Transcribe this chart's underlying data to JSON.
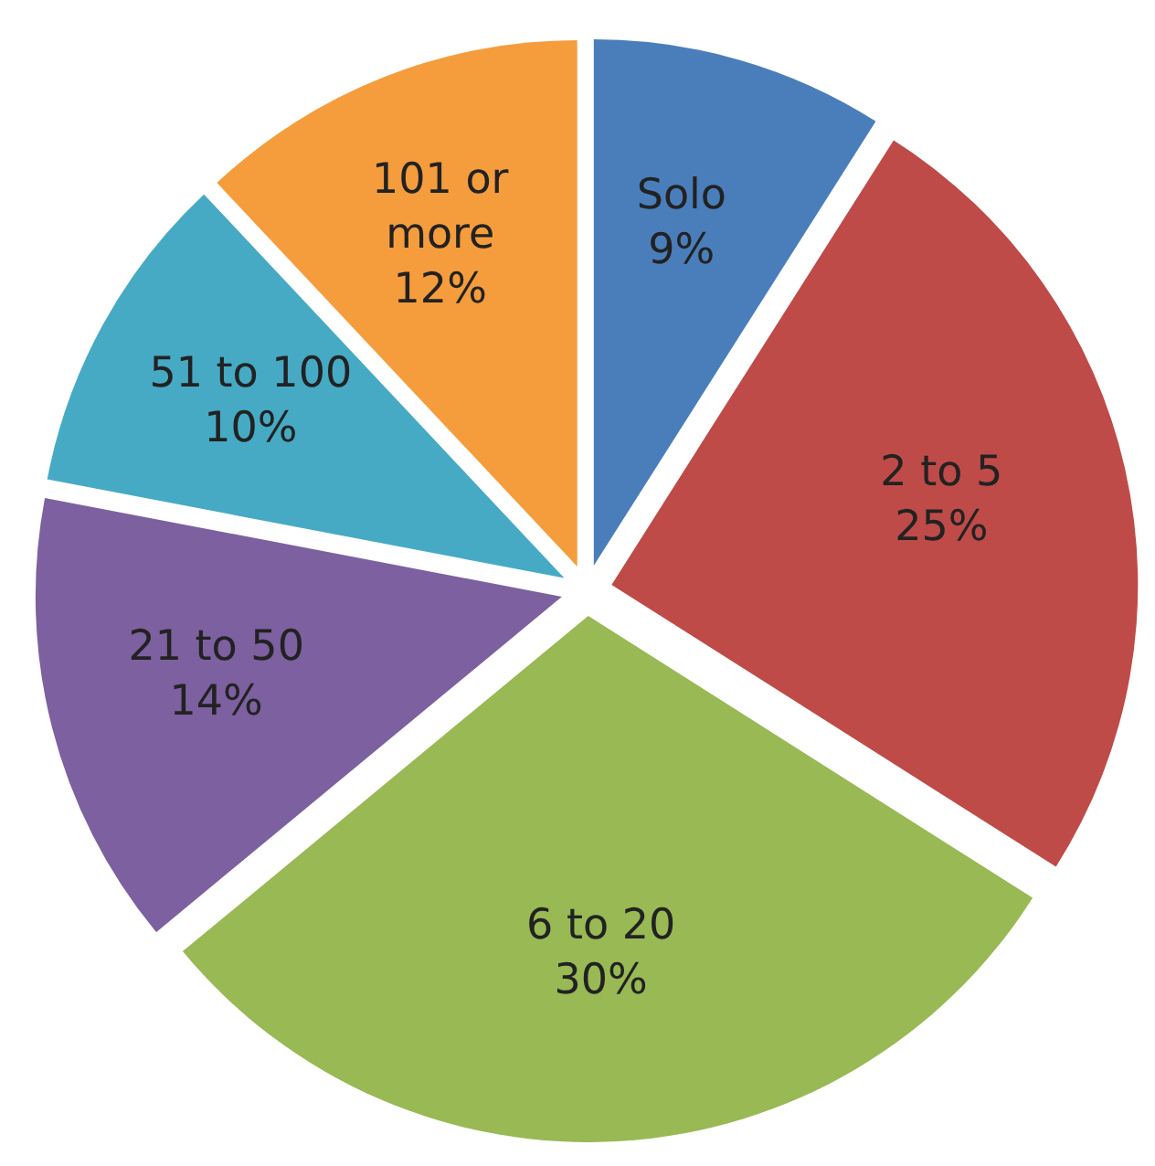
{
  "chart_data": {
    "type": "pie",
    "categories": [
      "Solo",
      "2 to 5",
      "6 to 20",
      "21 to 50",
      "51 to 100",
      "101 or more"
    ],
    "values": [
      9,
      25,
      30,
      14,
      10,
      12
    ],
    "colors": [
      "#4a7ebb",
      "#be4b48",
      "#98b954",
      "#7d60a0",
      "#46aac5",
      "#f59d3d"
    ],
    "value_labels": [
      "9%",
      "25%",
      "30%",
      "14%",
      "10%",
      "12%"
    ],
    "legend": false
  }
}
